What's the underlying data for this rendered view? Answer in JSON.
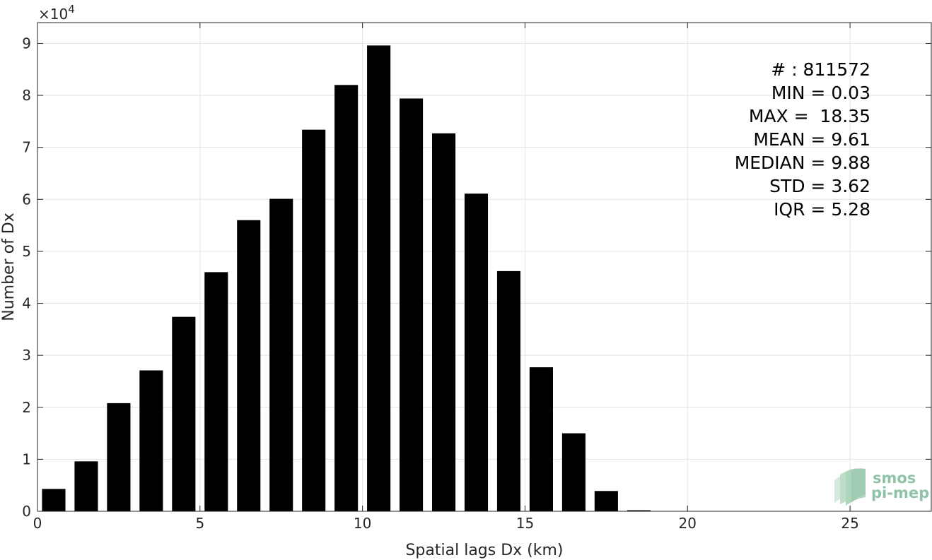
{
  "chart_data": {
    "type": "bar",
    "title": "",
    "xlabel": "Spatial lags Dx (km)",
    "ylabel": "Number of Dx",
    "y_exponent_label": "×10",
    "y_exponent_power": "4",
    "y_multiplier": 10000,
    "xlim": [
      0,
      27.5
    ],
    "ylim": [
      0,
      9.4
    ],
    "x_ticks": [
      0,
      5,
      10,
      15,
      20,
      25
    ],
    "y_ticks": [
      0,
      1,
      2,
      3,
      4,
      5,
      6,
      7,
      8,
      9
    ],
    "bar_width": 0.72,
    "grid": true,
    "x": [
      0.5,
      1.5,
      2.5,
      3.5,
      4.5,
      5.5,
      6.5,
      7.5,
      8.5,
      9.5,
      10.5,
      11.5,
      12.5,
      13.5,
      14.5,
      15.5,
      16.5,
      17.5,
      18.5
    ],
    "values": [
      0.43,
      0.96,
      2.08,
      2.71,
      3.74,
      4.6,
      5.6,
      6.01,
      7.34,
      8.2,
      8.96,
      7.94,
      7.27,
      6.11,
      4.62,
      2.77,
      1.5,
      0.39,
      0.02
    ],
    "bar_color": "#000000"
  },
  "stats": {
    "count": "# : 811572",
    "min": "MIN = 0.03",
    "max": "MAX =  18.35",
    "mean": "MEAN = 9.61",
    "median": "MEDIAN = 9.88",
    "std": "STD = 3.62",
    "iqr": "IQR = 5.28"
  },
  "logo": {
    "line1": "smos",
    "line2": "pi-mep",
    "color": "#8fc2a6"
  }
}
